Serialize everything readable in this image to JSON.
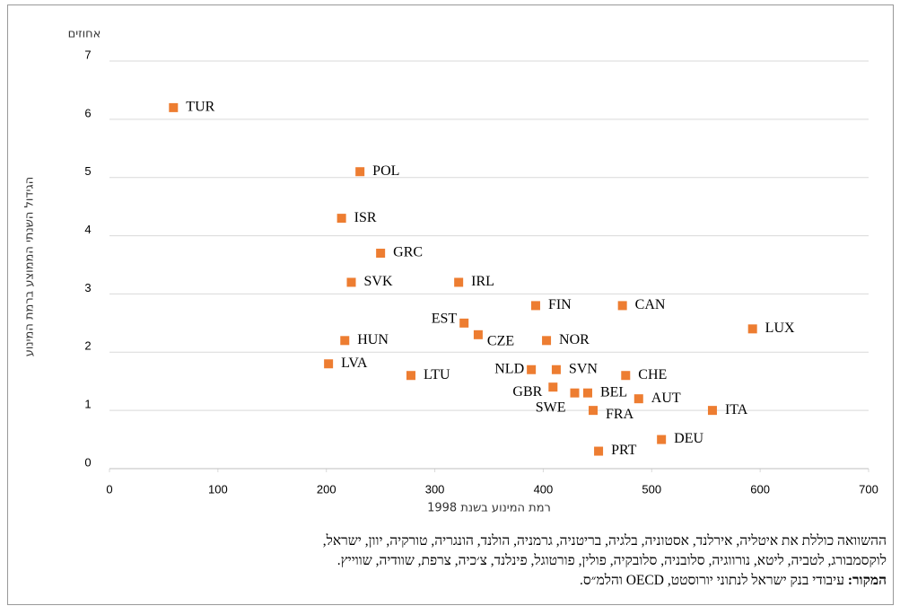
{
  "chart_data": {
    "type": "scatter",
    "unit_label": "אחוזים",
    "y_axis_label": "הגידול השנתי הממוצע ברמת המינוע",
    "x_axis_label": "רמת המינוע בשנת 1998",
    "labels": [
      "TUR",
      "POL",
      "ISR",
      "GRC",
      "SVK",
      "IRL",
      "FIN",
      "CAN",
      "LUX",
      "EST",
      "CZE",
      "HUN",
      "NOR",
      "LVA",
      "LTU",
      "NLD",
      "SVN",
      "CHE",
      "GBR",
      "BEL",
      "SWE",
      "FRA",
      "AUT",
      "ITA",
      "DEU",
      "PRT"
    ],
    "x": [
      59,
      231,
      214,
      250,
      223,
      322,
      393,
      473,
      593,
      327,
      340,
      217,
      403,
      202,
      278,
      389,
      412,
      476,
      409,
      441,
      429,
      446,
      488,
      556,
      509,
      451
    ],
    "values": [
      6.2,
      5.1,
      4.3,
      3.7,
      3.2,
      3.2,
      2.8,
      2.8,
      2.4,
      2.5,
      2.3,
      2.2,
      2.2,
      1.8,
      1.6,
      1.7,
      1.7,
      1.6,
      1.4,
      1.3,
      1.3,
      1.0,
      1.2,
      1.0,
      0.5,
      0.3
    ],
    "color": "#ED7D31",
    "xlim": [
      0,
      700
    ],
    "xticks": [
      0,
      100,
      200,
      300,
      400,
      500,
      600,
      700
    ],
    "ylim": [
      0,
      7
    ],
    "yticks": [
      0,
      1,
      2,
      3,
      4,
      5,
      6,
      7
    ],
    "grid": true,
    "footnote_lines": [
      "ההשוואה כוללת את איטליה, אירלנד, אסטוניה, בלגיה, בריטניה, גרמניה, הולנד, הונגריה, טורקיה, יוון, ישראל,",
      "לוקסמבורג, לטביה, ליטא, נורווגיה, סלובניה, סלובקיה, פולין, פורטוגל, פינלנד, צ׳כיה, צרפת, שוודיה, שווייץ."
    ],
    "source_label": "המקור:",
    "source_text": "עיבודי בנק ישראל לנתוני יורוסטט, OECD והלמ״ס."
  }
}
